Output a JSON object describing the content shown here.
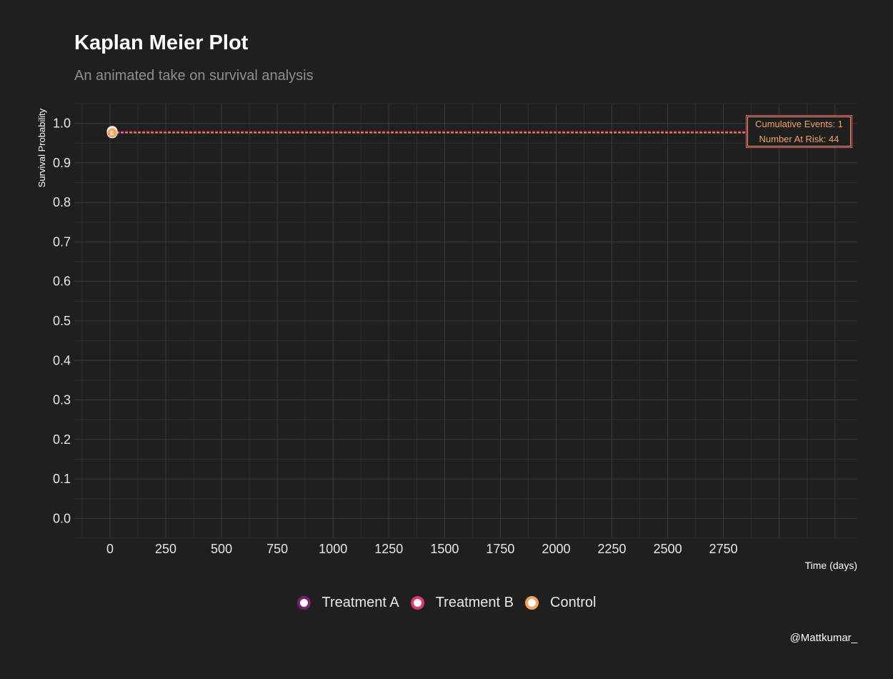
{
  "title": "Kaplan Meier Plot",
  "subtitle": "An animated take on survival analysis",
  "credit": "@Mattkumar_",
  "annotation": {
    "line1": "Cumulative Events: 1",
    "line2": "Number At Risk: 44"
  },
  "legend": [
    {
      "label": "Treatment A",
      "color": "#7b1f72"
    },
    {
      "label": "Treatment B",
      "color": "#e8336d"
    },
    {
      "label": "Control",
      "color": "#f5a25d"
    }
  ],
  "chart_data": {
    "type": "line",
    "xlabel": "Time (days)",
    "ylabel": "Survival Probability",
    "xlim": [
      -160,
      3350
    ],
    "ylim": [
      -0.05,
      1.05
    ],
    "x_ticks": [
      0,
      250,
      500,
      750,
      1000,
      1250,
      1500,
      1750,
      2000,
      2250,
      2500,
      2750
    ],
    "y_ticks": [
      0.0,
      0.1,
      0.2,
      0.3,
      0.4,
      0.5,
      0.6,
      0.7,
      0.8,
      0.9,
      1.0
    ],
    "y_tick_labels": [
      "0.0",
      "0.1",
      "0.2",
      "0.3",
      "0.4",
      "0.5",
      "0.6",
      "0.7",
      "0.8",
      "0.9",
      "1.0"
    ],
    "grid": true,
    "legend_position": "bottom",
    "series": [
      {
        "name": "Treatment A",
        "color": "#7b1f72",
        "x": [
          10
        ],
        "y": [
          0.98
        ],
        "reference_y": 0.98
      },
      {
        "name": "Treatment B",
        "color": "#e8336d",
        "x": [
          10
        ],
        "y": [
          0.978
        ],
        "reference_y": 0.978
      },
      {
        "name": "Control",
        "color": "#f5a25d",
        "x": [
          10
        ],
        "y": [
          0.976
        ],
        "reference_y": 0.976
      }
    ],
    "point_label": "E"
  }
}
